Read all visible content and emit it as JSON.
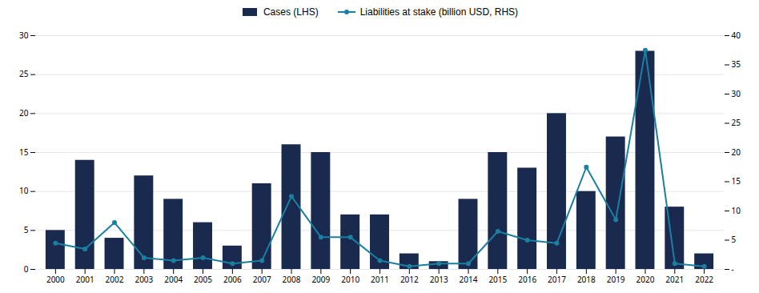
{
  "chart_data": {
    "type": "bar",
    "categories": [
      "2000",
      "2001",
      "2002",
      "2003",
      "2004",
      "2005",
      "2006",
      "2007",
      "2008",
      "2009",
      "2010",
      "2011",
      "2012",
      "2013",
      "2014",
      "2015",
      "2016",
      "2017",
      "2018",
      "2019",
      "2020",
      "2021",
      "2022"
    ],
    "series": [
      {
        "name": "Cases (LHS)",
        "type": "bar",
        "color": "#192a4e",
        "values": [
          5,
          14,
          4,
          12,
          9,
          6,
          3,
          11,
          16,
          15,
          7,
          7,
          2,
          1,
          9,
          15,
          13,
          20,
          10,
          17,
          28,
          8,
          2
        ]
      },
      {
        "name": "Liabilities at stake (billion USD, RHS)",
        "type": "line",
        "color": "#1a7fa0",
        "marker": "circle",
        "axis": "y2",
        "values": [
          4.5,
          3.5,
          8.0,
          2.0,
          1.5,
          2.0,
          1.0,
          1.5,
          12.5,
          5.5,
          5.5,
          1.5,
          0.5,
          1.0,
          1.0,
          6.5,
          5.0,
          4.5,
          17.5,
          8.5,
          37.5,
          1.0,
          0.5
        ]
      }
    ],
    "ylim": [
      0,
      30
    ],
    "yticks": [
      0,
      5,
      10,
      15,
      20,
      25,
      30
    ],
    "y2lim": [
      0,
      40
    ],
    "y2ticks": [
      {
        "value": 0,
        "label": "-"
      },
      5,
      10,
      15,
      20,
      25,
      30,
      35,
      40
    ],
    "grid": true,
    "legend": "top"
  }
}
